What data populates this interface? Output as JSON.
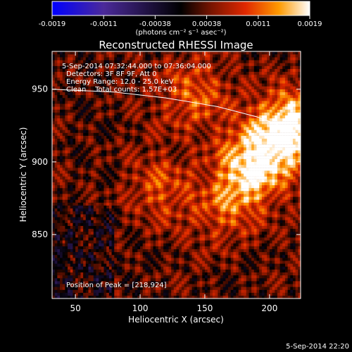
{
  "chart_data": {
    "type": "heatmap",
    "title": "Reconstructed RHESSI Image",
    "xlabel": "Heliocentric X (arcsec)",
    "ylabel": "Heliocentric Y (arcsec)",
    "xlim": [
      32,
      224
    ],
    "ylim": [
      806,
      976
    ],
    "xticks": [
      50,
      100,
      150,
      200
    ],
    "yticks": [
      850,
      900,
      950
    ],
    "colorbar": {
      "min": -0.0019,
      "max": 0.0019,
      "ticks": [
        "-0.0019",
        "-0.0011",
        "-0.00038",
        "0.00038",
        "0.0011",
        "0.0019"
      ],
      "unit_label": "(photons cm⁻² s⁻¹ asec⁻²)",
      "colors": [
        "#0000ff",
        "#4b2a9a",
        "#000000",
        "#7a1500",
        "#e02800",
        "#ff9a00",
        "#ffffff"
      ]
    },
    "annotations": [
      "5-Sep-2014 07:32:44.000 to 07:36:04.000",
      "Detectors: 3F 8F 9F, Att 0",
      "Energy Range: 12.0 - 25.0 keV",
      "Clean    Total counts: 1.57E+03"
    ],
    "peak_text": "Position of Peak = [218,924]",
    "peak": [
      218,
      924
    ],
    "limb_curve": [
      [
        32,
        950
      ],
      [
        80,
        948
      ],
      [
        120,
        944
      ],
      [
        160,
        938
      ],
      [
        190,
        931
      ],
      [
        215,
        923
      ]
    ],
    "sources": [
      {
        "x": 218,
        "y": 924,
        "intensity": 1.0
      },
      {
        "x": 195,
        "y": 905,
        "intensity": 0.6
      },
      {
        "x": 180,
        "y": 890,
        "intensity": 0.55
      },
      {
        "x": 140,
        "y": 945,
        "intensity": 0.5
      },
      {
        "x": 115,
        "y": 880,
        "intensity": 0.4
      },
      {
        "x": 165,
        "y": 865,
        "intensity": 0.35
      }
    ]
  },
  "footer_date": "5-Sep-2014 22:20"
}
